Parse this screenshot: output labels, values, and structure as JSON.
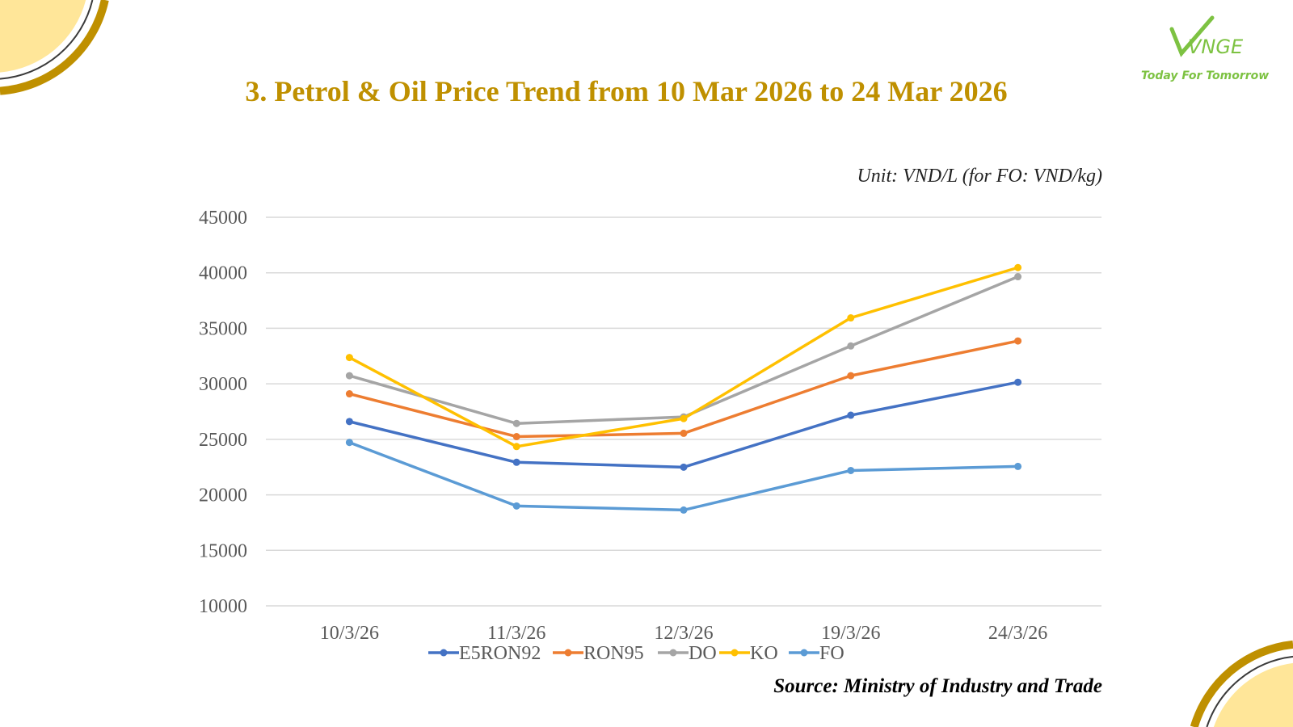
{
  "title": "3. Petrol & Oil Price Trend from 10 Mar 2026 to 24 Mar 2026",
  "unit_note": "Unit: VND/L (for FO: VND/kg)",
  "source": "Source: Ministry of Industry and Trade",
  "logo": {
    "brand": "VNGE",
    "tagline": "Today For Tomorrow",
    "color": "#7DC242"
  },
  "colors": {
    "accent": "#BF9000",
    "deco_fill": "#FFE699"
  },
  "chart_data": {
    "type": "line",
    "title": "3. Petrol & Oil Price Trend from 10 Mar 2026 to 24 Mar 2026",
    "xlabel": "",
    "ylabel": "Unit: VND/L (for FO: VND/kg)",
    "categories": [
      "10/3/26",
      "11/3/26",
      "12/3/26",
      "19/3/26",
      "24/3/26"
    ],
    "ylim": [
      10000,
      45000
    ],
    "yticks": [
      10000,
      15000,
      20000,
      25000,
      30000,
      35000,
      40000,
      45000
    ],
    "grid": true,
    "legend": "bottom",
    "series": [
      {
        "name": "E5RON92",
        "color": "#4472C4",
        "values": [
          26600,
          22930,
          22490,
          27170,
          30140
        ]
      },
      {
        "name": "RON95",
        "color": "#ED7D31",
        "values": [
          29100,
          25240,
          25540,
          30730,
          33860
        ]
      },
      {
        "name": "DO",
        "color": "#A5A5A5",
        "values": [
          30730,
          26430,
          27020,
          33410,
          39650
        ]
      },
      {
        "name": "KO",
        "color": "#FFC000",
        "values": [
          32370,
          24350,
          26870,
          35940,
          40470
        ]
      },
      {
        "name": "FO",
        "color": "#5B9BD5",
        "values": [
          24720,
          19000,
          18630,
          22190,
          22560
        ]
      }
    ]
  }
}
